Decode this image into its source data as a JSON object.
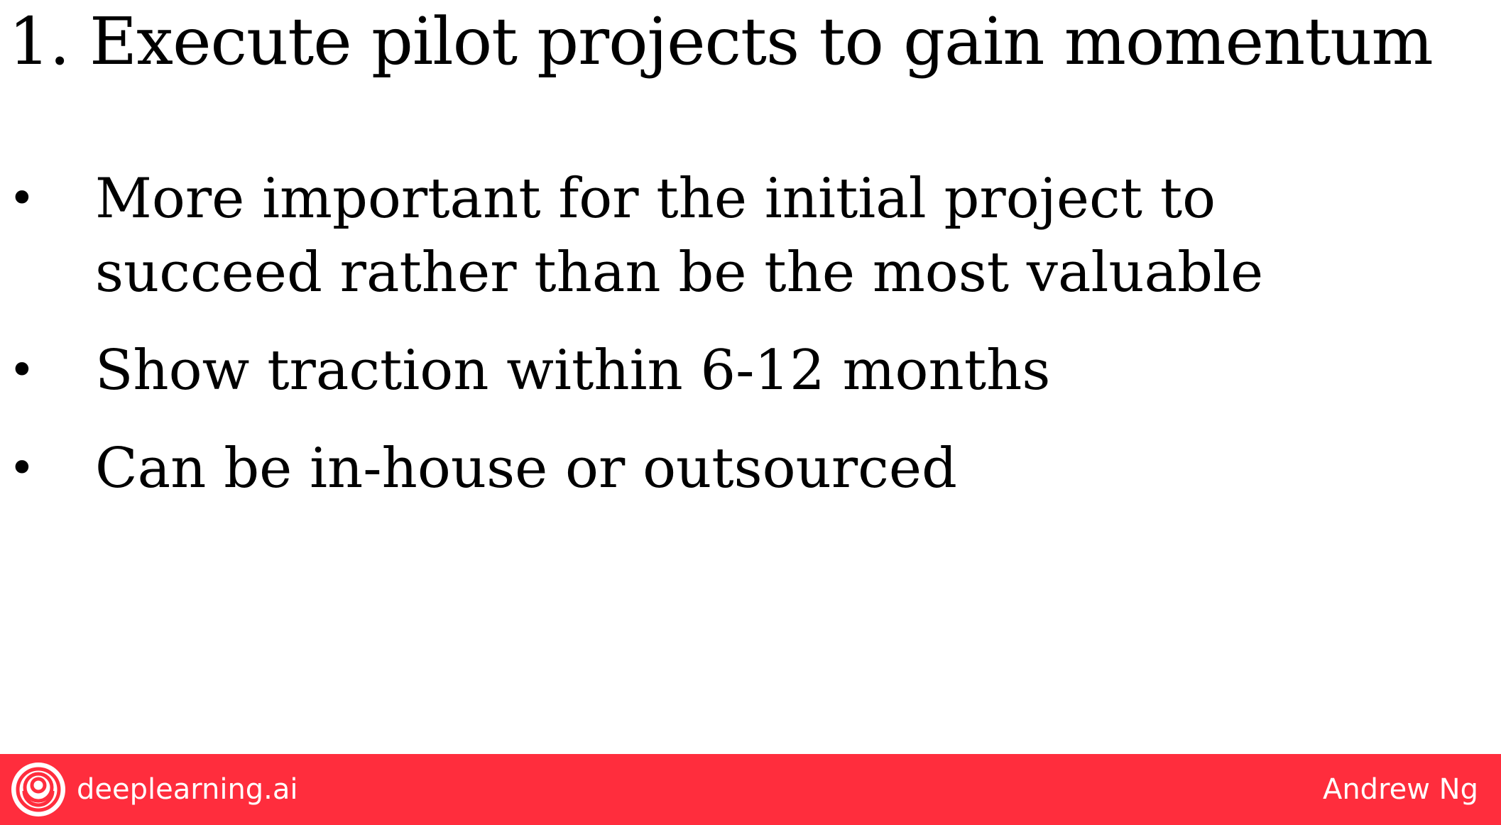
{
  "slide": {
    "title": "1. Execute pilot projects to gain momentum",
    "bullets": [
      {
        "marker": "•",
        "text": "More important for the initial project to succeed rather than be the most valuable"
      },
      {
        "marker": "•",
        "text": "Show traction within 6-12 months"
      },
      {
        "marker": "•",
        "text": "Can be in-house or outsourced"
      }
    ]
  },
  "footer": {
    "brand": "deeplearning.ai",
    "logo_icon": "deeplearning-logo-icon",
    "author": "Andrew Ng",
    "background_color": "#FF2D3D",
    "text_color": "#FFFFFF"
  }
}
